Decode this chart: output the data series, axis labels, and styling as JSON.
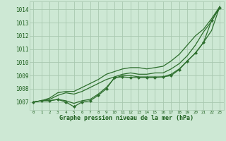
{
  "background_color": "#cde8d4",
  "grid_color": "#a8c8b0",
  "line_color": "#2d6e2d",
  "text_color": "#1a5c1a",
  "xlabel": "Graphe pression niveau de la mer (hPa)",
  "ylim_min": 1006.4,
  "ylim_max": 1014.6,
  "xlim_min": -0.5,
  "xlim_max": 23.5,
  "yticks": [
    1007,
    1008,
    1009,
    1010,
    1011,
    1012,
    1013,
    1014
  ],
  "xticks": [
    0,
    1,
    2,
    3,
    4,
    5,
    6,
    7,
    8,
    9,
    10,
    11,
    12,
    13,
    14,
    15,
    16,
    17,
    18,
    19,
    20,
    21,
    22,
    23
  ],
  "line_upper": [
    1007.0,
    1007.1,
    1007.3,
    1007.7,
    1007.8,
    1007.8,
    1008.1,
    1008.4,
    1008.7,
    1009.1,
    1009.3,
    1009.5,
    1009.6,
    1009.6,
    1009.5,
    1009.6,
    1009.7,
    1010.1,
    1010.6,
    1011.3,
    1012.0,
    1012.5,
    1013.3,
    1014.2
  ],
  "line_mid1": [
    1007.0,
    1007.1,
    1007.2,
    1007.5,
    1007.7,
    1007.6,
    1007.8,
    1008.1,
    1008.4,
    1008.7,
    1008.9,
    1009.1,
    1009.2,
    1009.1,
    1009.1,
    1009.2,
    1009.2,
    1009.5,
    1009.9,
    1010.5,
    1011.3,
    1012.3,
    1013.1,
    1014.2
  ],
  "line_mid2": [
    1007.0,
    1007.1,
    1007.1,
    1007.2,
    1007.1,
    1006.9,
    1007.1,
    1007.2,
    1007.6,
    1008.1,
    1008.8,
    1009.0,
    1009.0,
    1008.9,
    1008.9,
    1008.9,
    1008.9,
    1009.1,
    1009.5,
    1010.1,
    1010.7,
    1011.5,
    1012.4,
    1014.2
  ],
  "line_lower_marked": [
    1007.0,
    1007.1,
    1007.1,
    1007.2,
    1007.0,
    1006.65,
    1007.0,
    1007.1,
    1007.5,
    1008.0,
    1008.85,
    1008.9,
    1008.85,
    1008.85,
    1008.85,
    1008.85,
    1008.9,
    1009.0,
    1009.45,
    1010.1,
    1010.7,
    1011.5,
    1013.15,
    1014.1
  ]
}
